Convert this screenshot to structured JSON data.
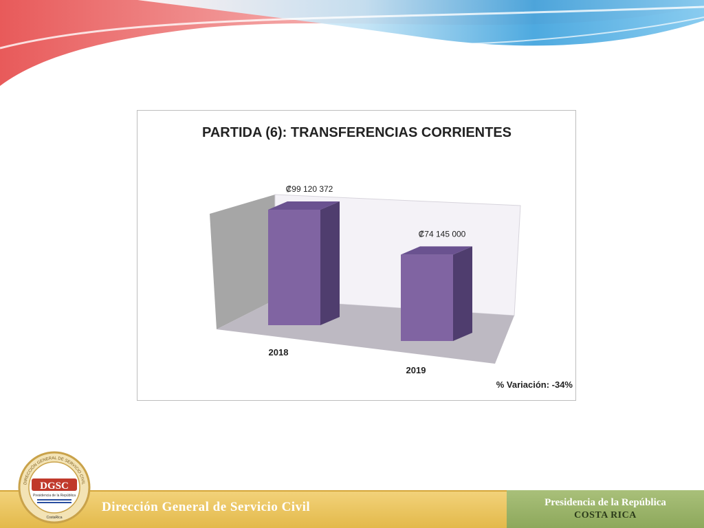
{
  "chart_data": {
    "type": "bar",
    "title": "PARTIDA (6): TRANSFERENCIAS CORRIENTES",
    "categories": [
      "2018",
      "2019"
    ],
    "values": [
      99120372,
      74145000
    ],
    "value_labels": [
      "₡99 120 372",
      "₡74 145 000"
    ],
    "annotation": "% Variación: -34%",
    "bar_color": "#8064a2",
    "three_d": true,
    "grid": false,
    "legend": "none"
  },
  "footer": {
    "institution": "Dirección General de Servicio Civil",
    "presidency_line1": "Presidencia de la República",
    "presidency_line2": "COSTA RICA"
  },
  "logo": {
    "acronym": "DGSC",
    "ring_text": "DIRECCIÓN GENERAL DE SERVICIO CIVIL",
    "subtitle": "Presidencia de la República",
    "country": "CostaRica"
  },
  "colors": {
    "header_red": "#e85a5a",
    "header_blue": "#3aa0dc",
    "footer_gold": "#e8c25a",
    "footer_green": "#9bb46a"
  }
}
